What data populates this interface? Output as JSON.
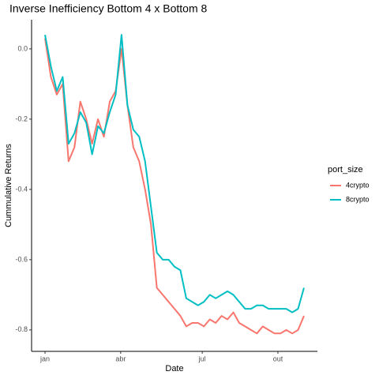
{
  "chart_data": {
    "type": "line",
    "title": "Inverse Inefficiency Bottom 4 x Bottom 8",
    "x_label": "Date",
    "y_label": "Cummulative Returns",
    "legend_title": "port_size",
    "x": [
      0,
      7,
      14,
      21,
      28,
      35,
      42,
      49,
      56,
      63,
      70,
      77,
      84,
      91,
      98,
      105,
      112,
      119,
      126,
      133,
      140,
      147,
      154,
      161,
      168,
      175,
      182,
      189,
      196,
      203,
      210,
      217,
      224,
      231,
      238,
      245,
      252,
      259,
      266,
      273,
      280,
      287,
      294,
      301,
      308
    ],
    "xlim": [
      -16,
      324
    ],
    "xticks": [
      {
        "value": 0,
        "label": "jan"
      },
      {
        "value": 90,
        "label": "abr"
      },
      {
        "value": 187,
        "label": "jul"
      },
      {
        "value": 277,
        "label": "out"
      }
    ],
    "ylim": [
      -0.861,
      0.083
    ],
    "yticks": [
      {
        "value": 0,
        "label": "0.0"
      },
      -0.2,
      -0.4,
      -0.6,
      -0.8
    ],
    "legend": "right",
    "series": [
      {
        "name": "4crypto",
        "color": "#F8766D",
        "values": [
          0.03,
          -0.08,
          -0.13,
          -0.1,
          -0.32,
          -0.28,
          -0.15,
          -0.2,
          -0.27,
          -0.2,
          -0.25,
          -0.15,
          -0.12,
          0.0,
          -0.16,
          -0.28,
          -0.32,
          -0.4,
          -0.5,
          -0.68,
          -0.7,
          -0.72,
          -0.74,
          -0.76,
          -0.79,
          -0.78,
          -0.78,
          -0.79,
          -0.77,
          -0.78,
          -0.76,
          -0.77,
          -0.75,
          -0.78,
          -0.79,
          -0.8,
          -0.81,
          -0.79,
          -0.8,
          -0.81,
          -0.81,
          -0.8,
          -0.81,
          -0.8,
          -0.76
        ]
      },
      {
        "name": "8crypto",
        "color": "#00BFC4",
        "values": [
          0.04,
          -0.05,
          -0.12,
          -0.08,
          -0.27,
          -0.24,
          -0.18,
          -0.21,
          -0.3,
          -0.22,
          -0.24,
          -0.18,
          -0.13,
          0.04,
          -0.16,
          -0.23,
          -0.25,
          -0.32,
          -0.45,
          -0.58,
          -0.6,
          -0.6,
          -0.62,
          -0.63,
          -0.71,
          -0.72,
          -0.73,
          -0.72,
          -0.7,
          -0.71,
          -0.7,
          -0.69,
          -0.7,
          -0.72,
          -0.74,
          -0.74,
          -0.73,
          -0.73,
          -0.74,
          -0.74,
          -0.74,
          -0.74,
          -0.75,
          -0.74,
          -0.68
        ]
      }
    ]
  }
}
